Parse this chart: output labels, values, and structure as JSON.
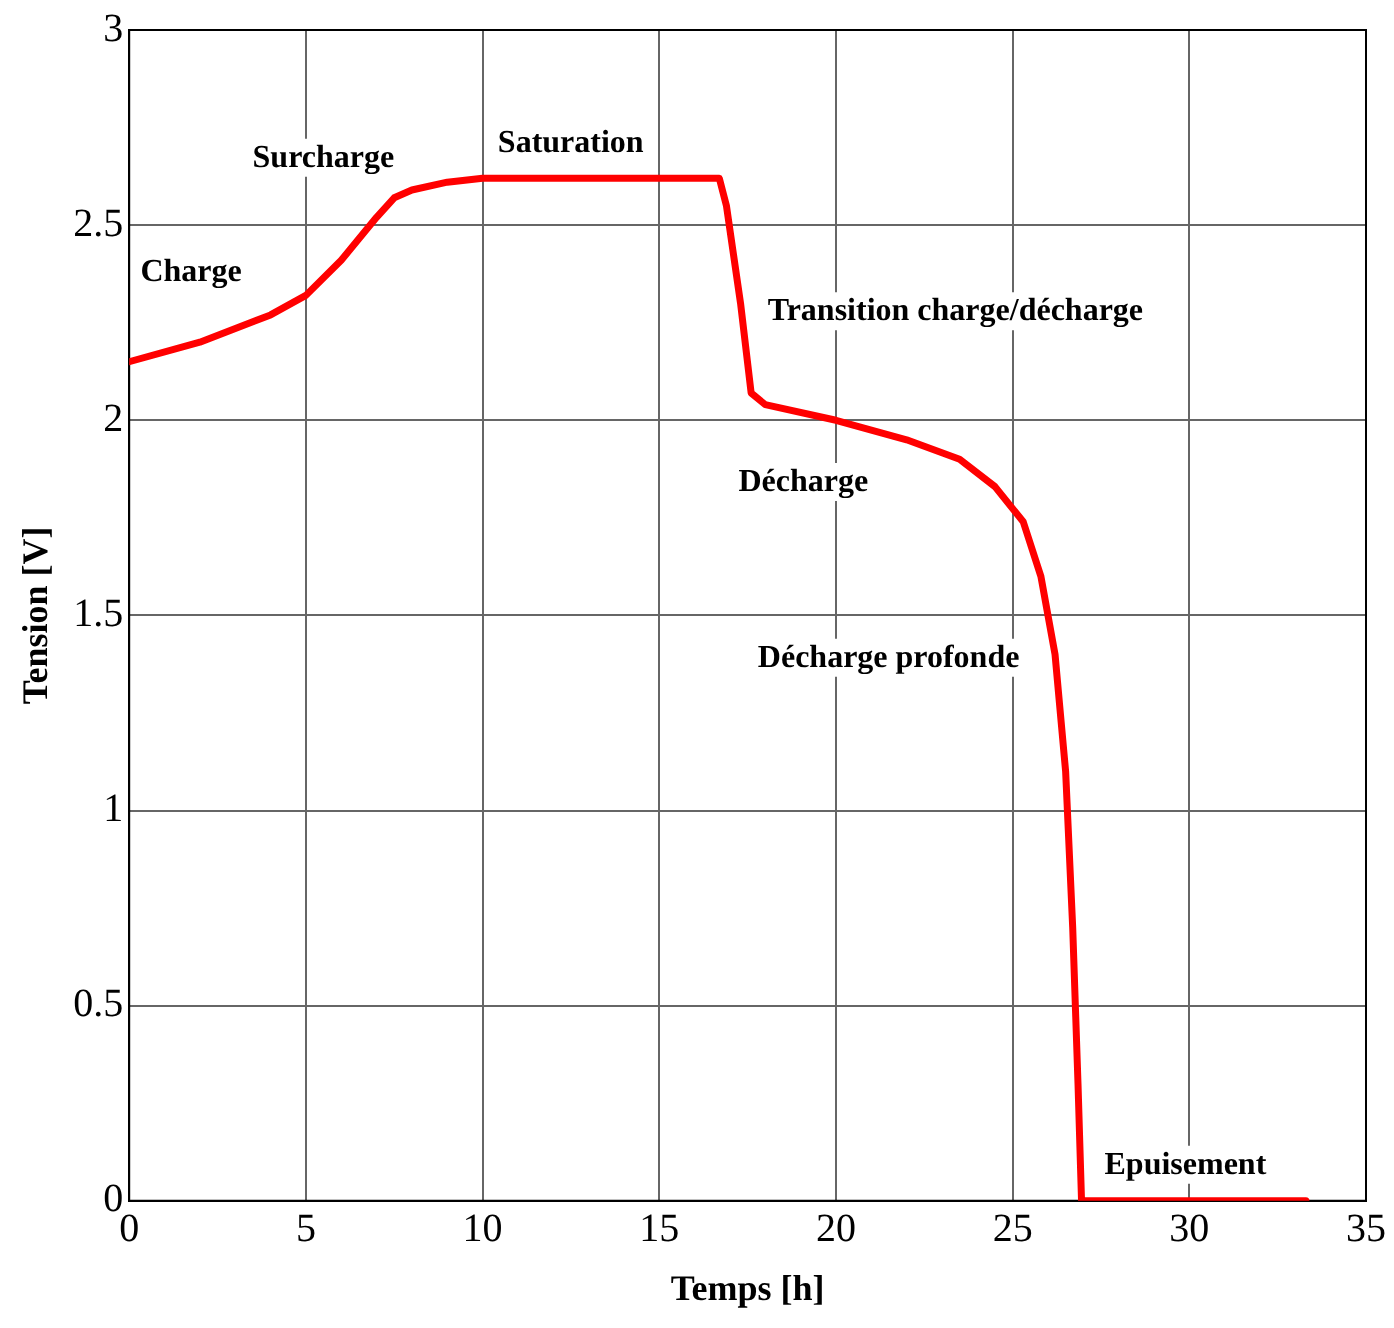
{
  "chart_data": {
    "type": "line",
    "xlabel": "Temps [h]",
    "ylabel": "Tension [V]",
    "series": [
      {
        "color": "#ff0000",
        "x": [
          0,
          2,
          4,
          5,
          6,
          7,
          7.5,
          8,
          9,
          10,
          16.7,
          16.9,
          17.3,
          17.6,
          18,
          20,
          22,
          23.5,
          24.5,
          25.3,
          25.8,
          26.2,
          26.5,
          26.7,
          26.85,
          26.95,
          33.3
        ],
        "values": [
          2.15,
          2.2,
          2.27,
          2.32,
          2.41,
          2.52,
          2.57,
          2.59,
          2.61,
          2.62,
          2.62,
          2.55,
          2.3,
          2.07,
          2.04,
          2.0,
          1.95,
          1.9,
          1.83,
          1.74,
          1.6,
          1.4,
          1.1,
          0.7,
          0.3,
          0,
          0
        ]
      }
    ],
    "xlim": [
      0,
      35
    ],
    "xticks": [
      0,
      5,
      10,
      15,
      20,
      25,
      30,
      35
    ],
    "ylim": [
      0,
      3
    ],
    "yticks": [
      0,
      0.5,
      1,
      1.5,
      2,
      2.5,
      3
    ],
    "grid": true,
    "marker": "none",
    "line_style": "solid",
    "legend": false,
    "annotations": [
      "Charge",
      "Surcharge",
      "Saturation",
      "Transition charge/décharge",
      "Décharge",
      "Décharge profonde",
      "Epuisement"
    ]
  }
}
